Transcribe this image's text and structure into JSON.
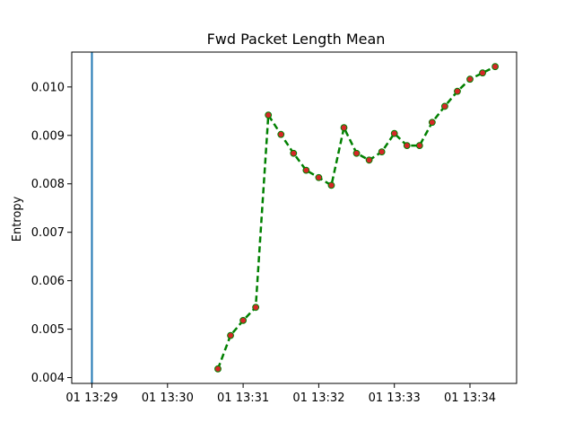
{
  "chart_data": {
    "type": "line",
    "title": "Fwd Packet Length Mean",
    "xlabel": "",
    "ylabel": "Entropy",
    "x_tick_labels": [
      "01 13:29",
      "01 13:30",
      "01 13:31",
      "01 13:32",
      "01 13:33",
      "01 13:34"
    ],
    "x_ticks": [
      "13:29:00",
      "13:30:00",
      "13:31:00",
      "13:32:00",
      "13:33:00",
      "13:34:00"
    ],
    "xlim": [
      "13:28:44",
      "13:34:37"
    ],
    "y_tick_labels": [
      "0.004",
      "0.005",
      "0.006",
      "0.007",
      "0.008",
      "0.009",
      "0.010"
    ],
    "y_ticks": [
      0.004,
      0.005,
      0.006,
      0.007,
      0.008,
      0.009,
      0.01
    ],
    "ylim": [
      0.00388,
      0.01072
    ],
    "grid": false,
    "vertical_line": {
      "x": "13:29:00",
      "color": "#1f77b4"
    },
    "series": [
      {
        "line_color": "#008000",
        "line_style": "dashed",
        "marker_color": "#d62728",
        "x": [
          "13:30:40",
          "13:30:50",
          "13:31:00",
          "13:31:10",
          "13:31:20",
          "13:31:30",
          "13:31:40",
          "13:31:50",
          "13:32:00",
          "13:32:10",
          "13:32:20",
          "13:32:30",
          "13:32:40",
          "13:32:50",
          "13:33:00",
          "13:33:10",
          "13:33:20",
          "13:33:30",
          "13:33:40",
          "13:33:50",
          "13:34:00",
          "13:34:10",
          "13:34:20"
        ],
        "y": [
          0.00418,
          0.00487,
          0.00518,
          0.00545,
          0.00942,
          0.00902,
          0.00863,
          0.00828,
          0.00813,
          0.00797,
          0.00916,
          0.00863,
          0.00849,
          0.00866,
          0.00904,
          0.00879,
          0.00879,
          0.00927,
          0.0096,
          0.00991,
          0.01016,
          0.01029,
          0.01042
        ]
      }
    ]
  }
}
